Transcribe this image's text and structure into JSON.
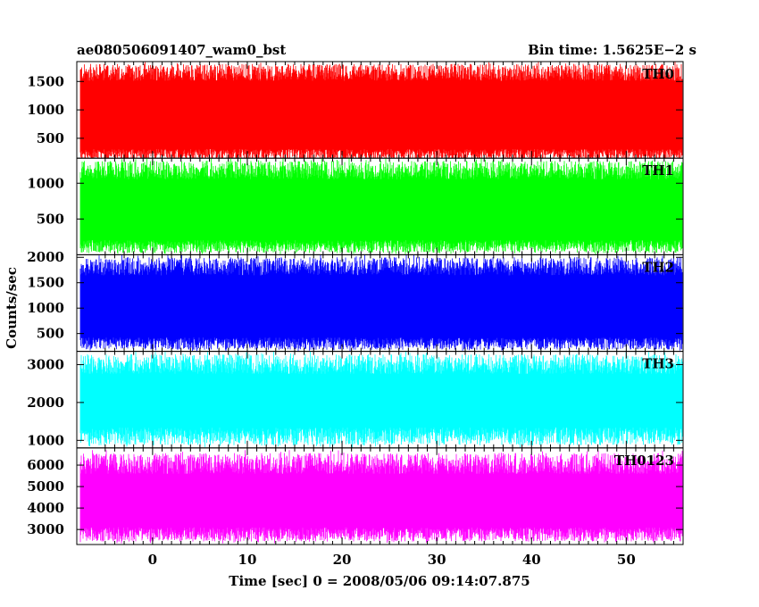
{
  "chart_data": {
    "type": "line",
    "title": "ae080506091407_wam0_bst",
    "subtitle": "Bin time: 1.5625E−2 s",
    "xlabel": "Time [sec] 0 = 2008/05/06 09:14:07.875",
    "ylabel": "Counts/sec",
    "xlim": [
      -8,
      56
    ],
    "xticks": [
      0,
      10,
      20,
      30,
      40,
      50
    ],
    "grid": false,
    "panels": [
      {
        "name": "TH0",
        "color": "#ff0000",
        "ylim": [
          150,
          1850
        ],
        "yticks": [
          500,
          1000,
          1500
        ],
        "signal": {
          "mean": 850,
          "upper_envelope": 1600,
          "lower_envelope": 250,
          "max": 1850,
          "min": 80
        }
      },
      {
        "name": "TH1",
        "color": "#00ff00",
        "ylim": [
          0,
          1350
        ],
        "yticks": [
          500,
          1000
        ],
        "signal": {
          "mean": 650,
          "upper_envelope": 1130,
          "lower_envelope": 150,
          "max": 1350,
          "min": 0
        }
      },
      {
        "name": "TH2",
        "color": "#0000ff",
        "ylim": [
          150,
          2050
        ],
        "yticks": [
          500,
          1000,
          1500,
          2000
        ],
        "signal": {
          "mean": 1000,
          "upper_envelope": 1750,
          "lower_envelope": 350,
          "max": 2050,
          "min": 150
        }
      },
      {
        "name": "TH3",
        "color": "#00ffff",
        "ylim": [
          800,
          3350
        ],
        "yticks": [
          1000,
          2000,
          3000
        ],
        "signal": {
          "mean": 2050,
          "upper_envelope": 2900,
          "lower_envelope": 1200,
          "max": 3350,
          "min": 800
        }
      },
      {
        "name": "TH0123",
        "color": "#ff00ff",
        "ylim": [
          2300,
          6800
        ],
        "yticks": [
          3000,
          4000,
          5000,
          6000
        ],
        "signal": {
          "mean": 4300,
          "upper_envelope": 5850,
          "lower_envelope": 2900,
          "max": 6700,
          "min": 2350
        }
      }
    ]
  }
}
